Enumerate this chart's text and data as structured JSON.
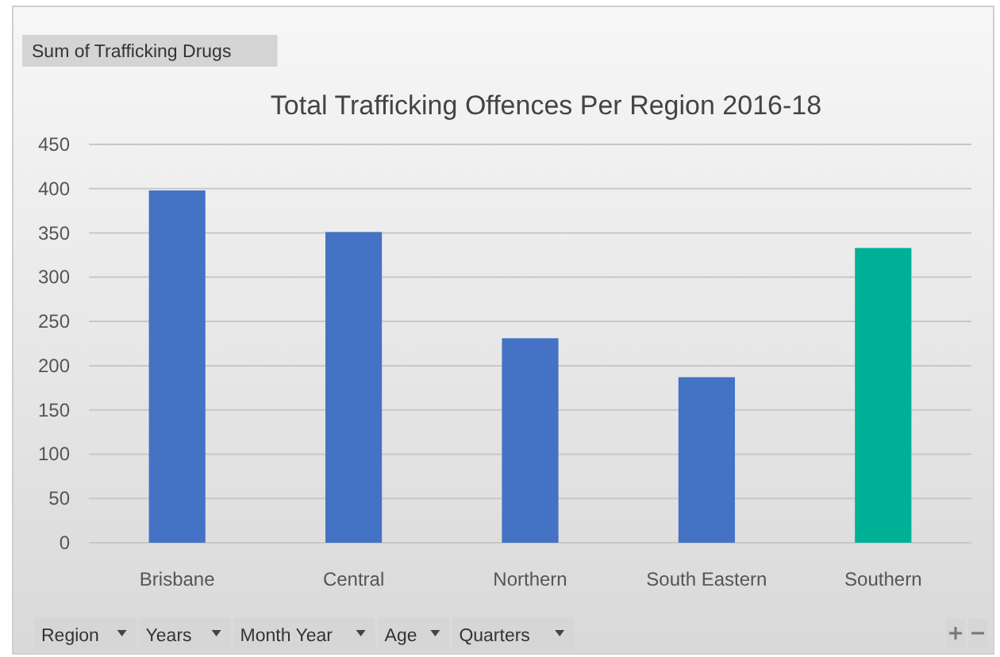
{
  "chart_data": {
    "type": "bar",
    "title": "Total Trafficking Offences Per Region 2016-18",
    "categories": [
      "Brisbane",
      "Central",
      "Northern",
      "South Eastern",
      "Southern"
    ],
    "values": [
      398,
      351,
      231,
      187,
      333
    ],
    "colors": [
      "#4472c4",
      "#4472c4",
      "#4472c4",
      "#4472c4",
      "#00b096"
    ],
    "ylim": [
      0,
      450
    ],
    "yticks": [
      0,
      50,
      100,
      150,
      200,
      250,
      300,
      350,
      400,
      450
    ],
    "grid": "y",
    "annotations": [
      "Sum of Trafficking Drugs",
      "Region",
      "Years",
      "Month Year",
      "Age",
      "Quarters"
    ]
  }
}
